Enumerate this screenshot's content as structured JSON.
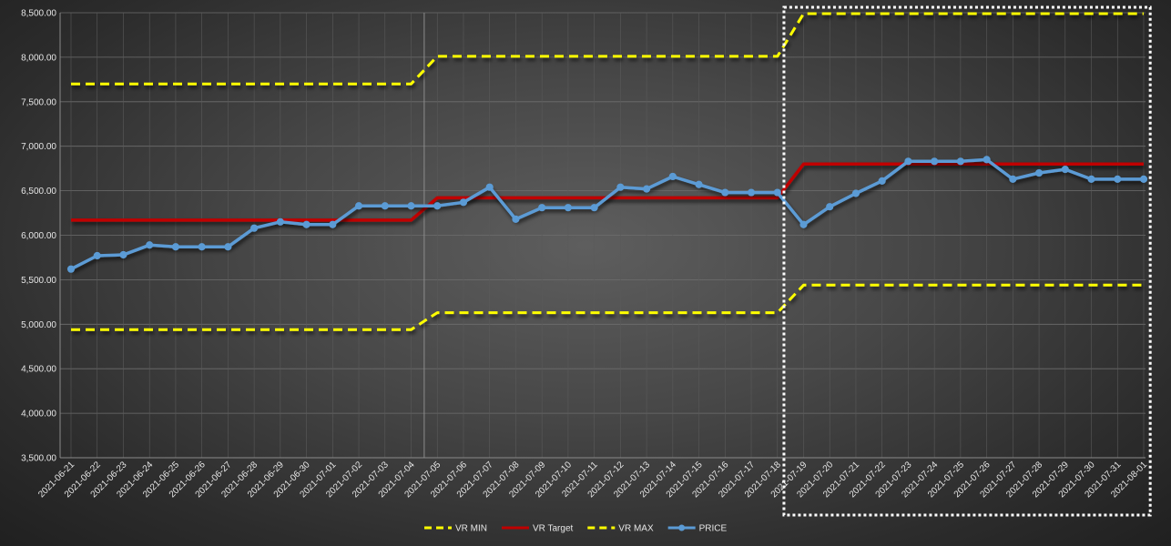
{
  "chart_data": {
    "type": "line",
    "title": "",
    "xlabel": "",
    "ylabel": "",
    "ylim": [
      3500,
      8500
    ],
    "y_tick_step": 500,
    "y_tick_format": "0,000.00",
    "grid": true,
    "legend_position": "bottom",
    "categories": [
      "2021-06-21",
      "2021-06-22",
      "2021-06-23",
      "2021-06-24",
      "2021-06-25",
      "2021-06-26",
      "2021-06-27",
      "2021-06-28",
      "2021-06-29",
      "2021-06-30",
      "2021-07-01",
      "2021-07-02",
      "2021-07-03",
      "2021-07-04",
      "2021-07-05",
      "2021-07-06",
      "2021-07-07",
      "2021-07-08",
      "2021-07-09",
      "2021-07-10",
      "2021-07-11",
      "2021-07-12",
      "2021-07-13",
      "2021-07-14",
      "2021-07-15",
      "2021-07-16",
      "2021-07-17",
      "2021-07-18",
      "2021-07-19",
      "2021-07-20",
      "2021-07-21",
      "2021-07-22",
      "2021-07-23",
      "2021-07-24",
      "2021-07-25",
      "2021-07-26",
      "2021-07-27",
      "2021-07-28",
      "2021-07-29",
      "2021-07-30",
      "2021-07-31",
      "2021-08-01"
    ],
    "series": [
      {
        "name": "VR MIN",
        "color": "#ffff00",
        "style": "dash",
        "markers": false,
        "values": [
          4940,
          4940,
          4940,
          4940,
          4940,
          4940,
          4940,
          4940,
          4940,
          4940,
          4940,
          4940,
          4940,
          4940,
          5130,
          5130,
          5130,
          5130,
          5130,
          5130,
          5130,
          5130,
          5130,
          5130,
          5130,
          5130,
          5130,
          5130,
          5440,
          5440,
          5440,
          5440,
          5440,
          5440,
          5440,
          5440,
          5440,
          5440,
          5440,
          5440,
          5440,
          5440
        ]
      },
      {
        "name": "VR Target",
        "color": "#c00000",
        "style": "solid",
        "markers": false,
        "values": [
          6170,
          6170,
          6170,
          6170,
          6170,
          6170,
          6170,
          6170,
          6170,
          6170,
          6170,
          6170,
          6170,
          6170,
          6420,
          6420,
          6420,
          6420,
          6420,
          6420,
          6420,
          6420,
          6420,
          6420,
          6420,
          6420,
          6420,
          6420,
          6800,
          6800,
          6800,
          6800,
          6800,
          6800,
          6800,
          6800,
          6800,
          6800,
          6800,
          6800,
          6800,
          6800
        ]
      },
      {
        "name": "VR MAX",
        "color": "#ffff00",
        "style": "dash",
        "markers": false,
        "values": [
          7700,
          7700,
          7700,
          7700,
          7700,
          7700,
          7700,
          7700,
          7700,
          7700,
          7700,
          7700,
          7700,
          7700,
          8010,
          8010,
          8010,
          8010,
          8010,
          8010,
          8010,
          8010,
          8010,
          8010,
          8010,
          8010,
          8010,
          8010,
          8490,
          8490,
          8490,
          8490,
          8490,
          8490,
          8490,
          8490,
          8490,
          8490,
          8490,
          8490,
          8490,
          8490
        ]
      },
      {
        "name": "PRICE",
        "color": "#5b9bd5",
        "style": "solid",
        "markers": true,
        "values": [
          5620,
          5770,
          5780,
          5890,
          5870,
          5870,
          5870,
          6080,
          6150,
          6120,
          6120,
          6330,
          6330,
          6330,
          6330,
          6370,
          6540,
          6180,
          6310,
          6310,
          6310,
          6540,
          6520,
          6660,
          6570,
          6480,
          6480,
          6480,
          6120,
          6320,
          6470,
          6610,
          6830,
          6830,
          6830,
          6850,
          6630,
          6700,
          6740,
          6630,
          6630,
          6630
        ]
      }
    ],
    "annotations": [
      {
        "type": "dotted-box",
        "color": "#ffffff",
        "from_category": "2021-07-19",
        "to_category": "2021-08-01"
      }
    ]
  }
}
